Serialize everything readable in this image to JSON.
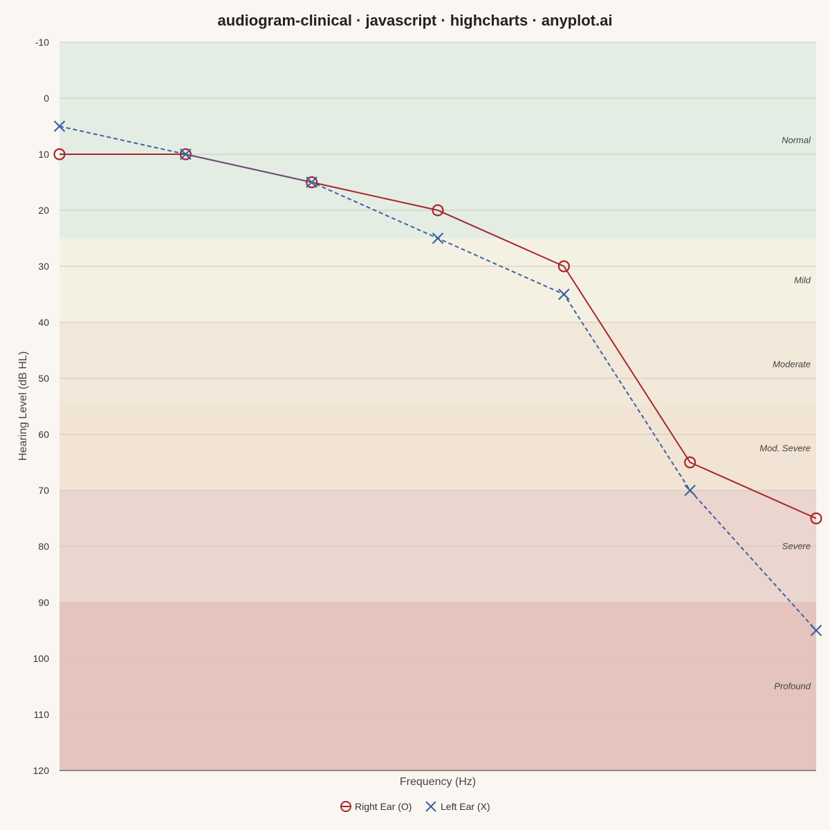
{
  "chart_data": {
    "type": "line",
    "title": "audiogram-clinical · javascript · highcharts · anyplot.ai",
    "xlabel": "Frequency (Hz)",
    "ylabel": "Hearing Level (dB HL)",
    "ylim": [
      -10,
      120
    ],
    "y_reversed": true,
    "y_ticks": [
      -10,
      0,
      10,
      20,
      30,
      40,
      50,
      60,
      70,
      80,
      90,
      100,
      110,
      120
    ],
    "x_count": 7,
    "grid": true,
    "legend_position": "bottom-center",
    "bands": [
      {
        "label": "Normal",
        "from": -10,
        "to": 25,
        "color": "#e3ede3"
      },
      {
        "label": "Mild",
        "from": 25,
        "to": 40,
        "color": "#f5f1e2"
      },
      {
        "label": "Moderate",
        "from": 40,
        "to": 55,
        "color": "#f1e8d9"
      },
      {
        "label": "Mod. Severe",
        "from": 55,
        "to": 70,
        "color": "#f1e4d4"
      },
      {
        "label": "Severe",
        "from": 70,
        "to": 90,
        "color": "#ebd5cf"
      },
      {
        "label": "Profound",
        "from": 90,
        "to": 120,
        "color": "#e5c4bd"
      }
    ],
    "series": [
      {
        "name": "Right Ear (O)",
        "marker": "circle",
        "dash": false,
        "color": "#a8262c",
        "values": [
          10,
          10,
          15,
          20,
          30,
          65,
          75
        ]
      },
      {
        "name": "Left Ear (X)",
        "marker": "cross",
        "dash": true,
        "color": "#3c62a0",
        "values": [
          5,
          10,
          15,
          25,
          35,
          70,
          95
        ]
      }
    ]
  }
}
